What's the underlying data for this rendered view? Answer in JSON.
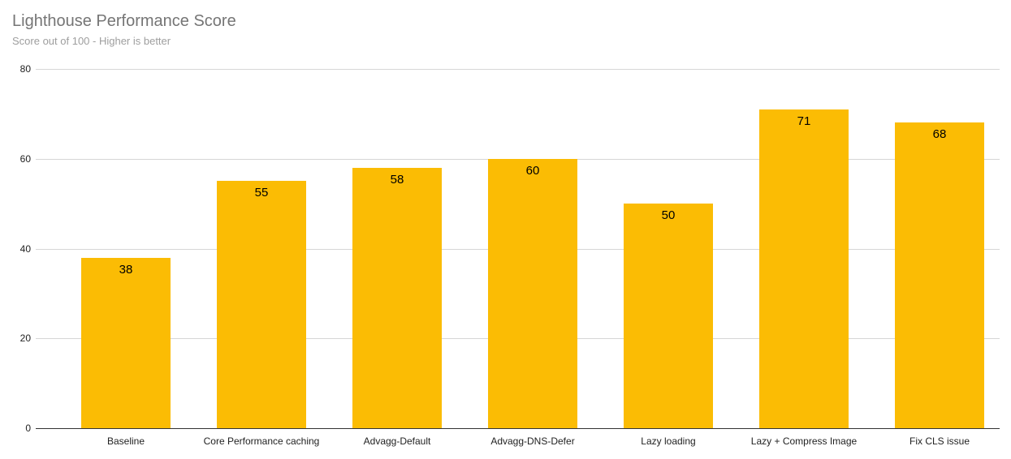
{
  "header": {
    "title": "Lighthouse Performance Score",
    "subtitle": "Score out of 100 - Higher is better"
  },
  "chart_data": {
    "type": "bar",
    "title": "Lighthouse Performance Score",
    "subtitle": "Score out of 100 - Higher is better",
    "categories": [
      "Baseline",
      "Core Performance caching",
      "Advagg-Default",
      "Advagg-DNS-Defer",
      "Lazy loading",
      "Lazy + Compress Image",
      "Fix CLS issue"
    ],
    "values": [
      38,
      55,
      58,
      60,
      50,
      71,
      68
    ],
    "xlabel": "",
    "ylabel": "",
    "ylim": [
      0,
      80
    ],
    "yticks": [
      0,
      20,
      40,
      60,
      80
    ],
    "grid": true,
    "legend_position": "none",
    "colors": {
      "bar": "#fbbc04",
      "value_label": "#000000",
      "axis_text": "#222222",
      "gridline": "#d6d6d6",
      "baseline": "#333333",
      "title": "#757575",
      "subtitle": "#9e9e9e"
    }
  }
}
